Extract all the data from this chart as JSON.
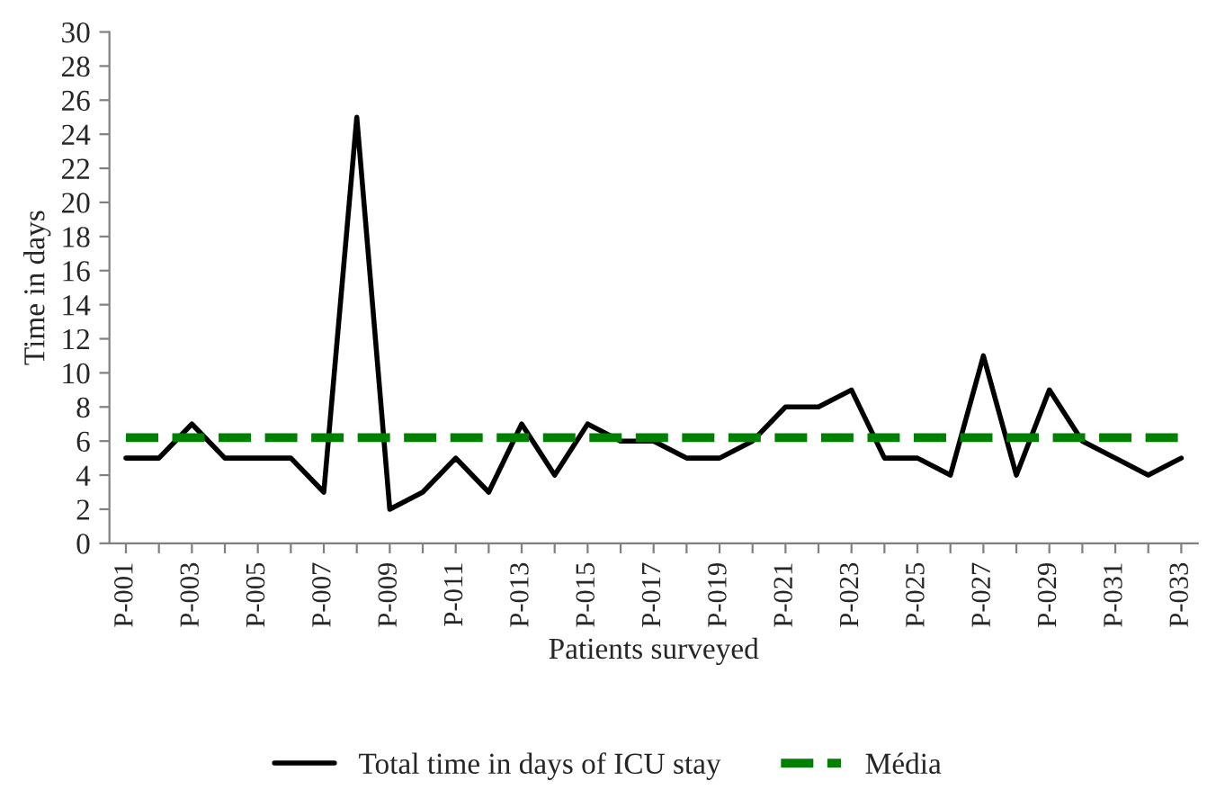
{
  "chart_data": {
    "type": "line",
    "xlabel": "Patients surveyed",
    "ylabel": "Time in days",
    "categories": [
      "P-001",
      null,
      "P-003",
      null,
      "P-005",
      null,
      "P-007",
      null,
      "P-009",
      null,
      "P-011",
      null,
      "P-013",
      null,
      "P-015",
      null,
      "P-017",
      null,
      "P-019",
      null,
      "P-021",
      null,
      "P-023",
      null,
      "P-025",
      null,
      "P-027",
      null,
      "P-029",
      null,
      "P-031",
      null,
      "P-033"
    ],
    "series": [
      {
        "name": "Total time in days of ICU stay",
        "color": "#000000",
        "line_style": "solid",
        "values": [
          5,
          5,
          7,
          5,
          5,
          5,
          3,
          25,
          2,
          3,
          5,
          3,
          7,
          4,
          7,
          6,
          6,
          5,
          5,
          6,
          8,
          8,
          9,
          5,
          5,
          4,
          11,
          4,
          9,
          6,
          5,
          4,
          5
        ]
      },
      {
        "name": "Média",
        "color": "#008000",
        "line_style": "dashed",
        "values": [
          6.2,
          6.2,
          6.2,
          6.2,
          6.2,
          6.2,
          6.2,
          6.2,
          6.2,
          6.2,
          6.2,
          6.2,
          6.2,
          6.2,
          6.2,
          6.2,
          6.2,
          6.2,
          6.2,
          6.2,
          6.2,
          6.2,
          6.2,
          6.2,
          6.2,
          6.2,
          6.2,
          6.2,
          6.2,
          6.2,
          6.2,
          6.2,
          6.2
        ]
      }
    ],
    "ylim": [
      0,
      30
    ],
    "yticks": [
      0,
      2,
      4,
      6,
      8,
      10,
      12,
      14,
      16,
      18,
      20,
      22,
      24,
      26,
      28,
      30
    ],
    "grid": false,
    "legend": "bottom",
    "marker": "none"
  }
}
